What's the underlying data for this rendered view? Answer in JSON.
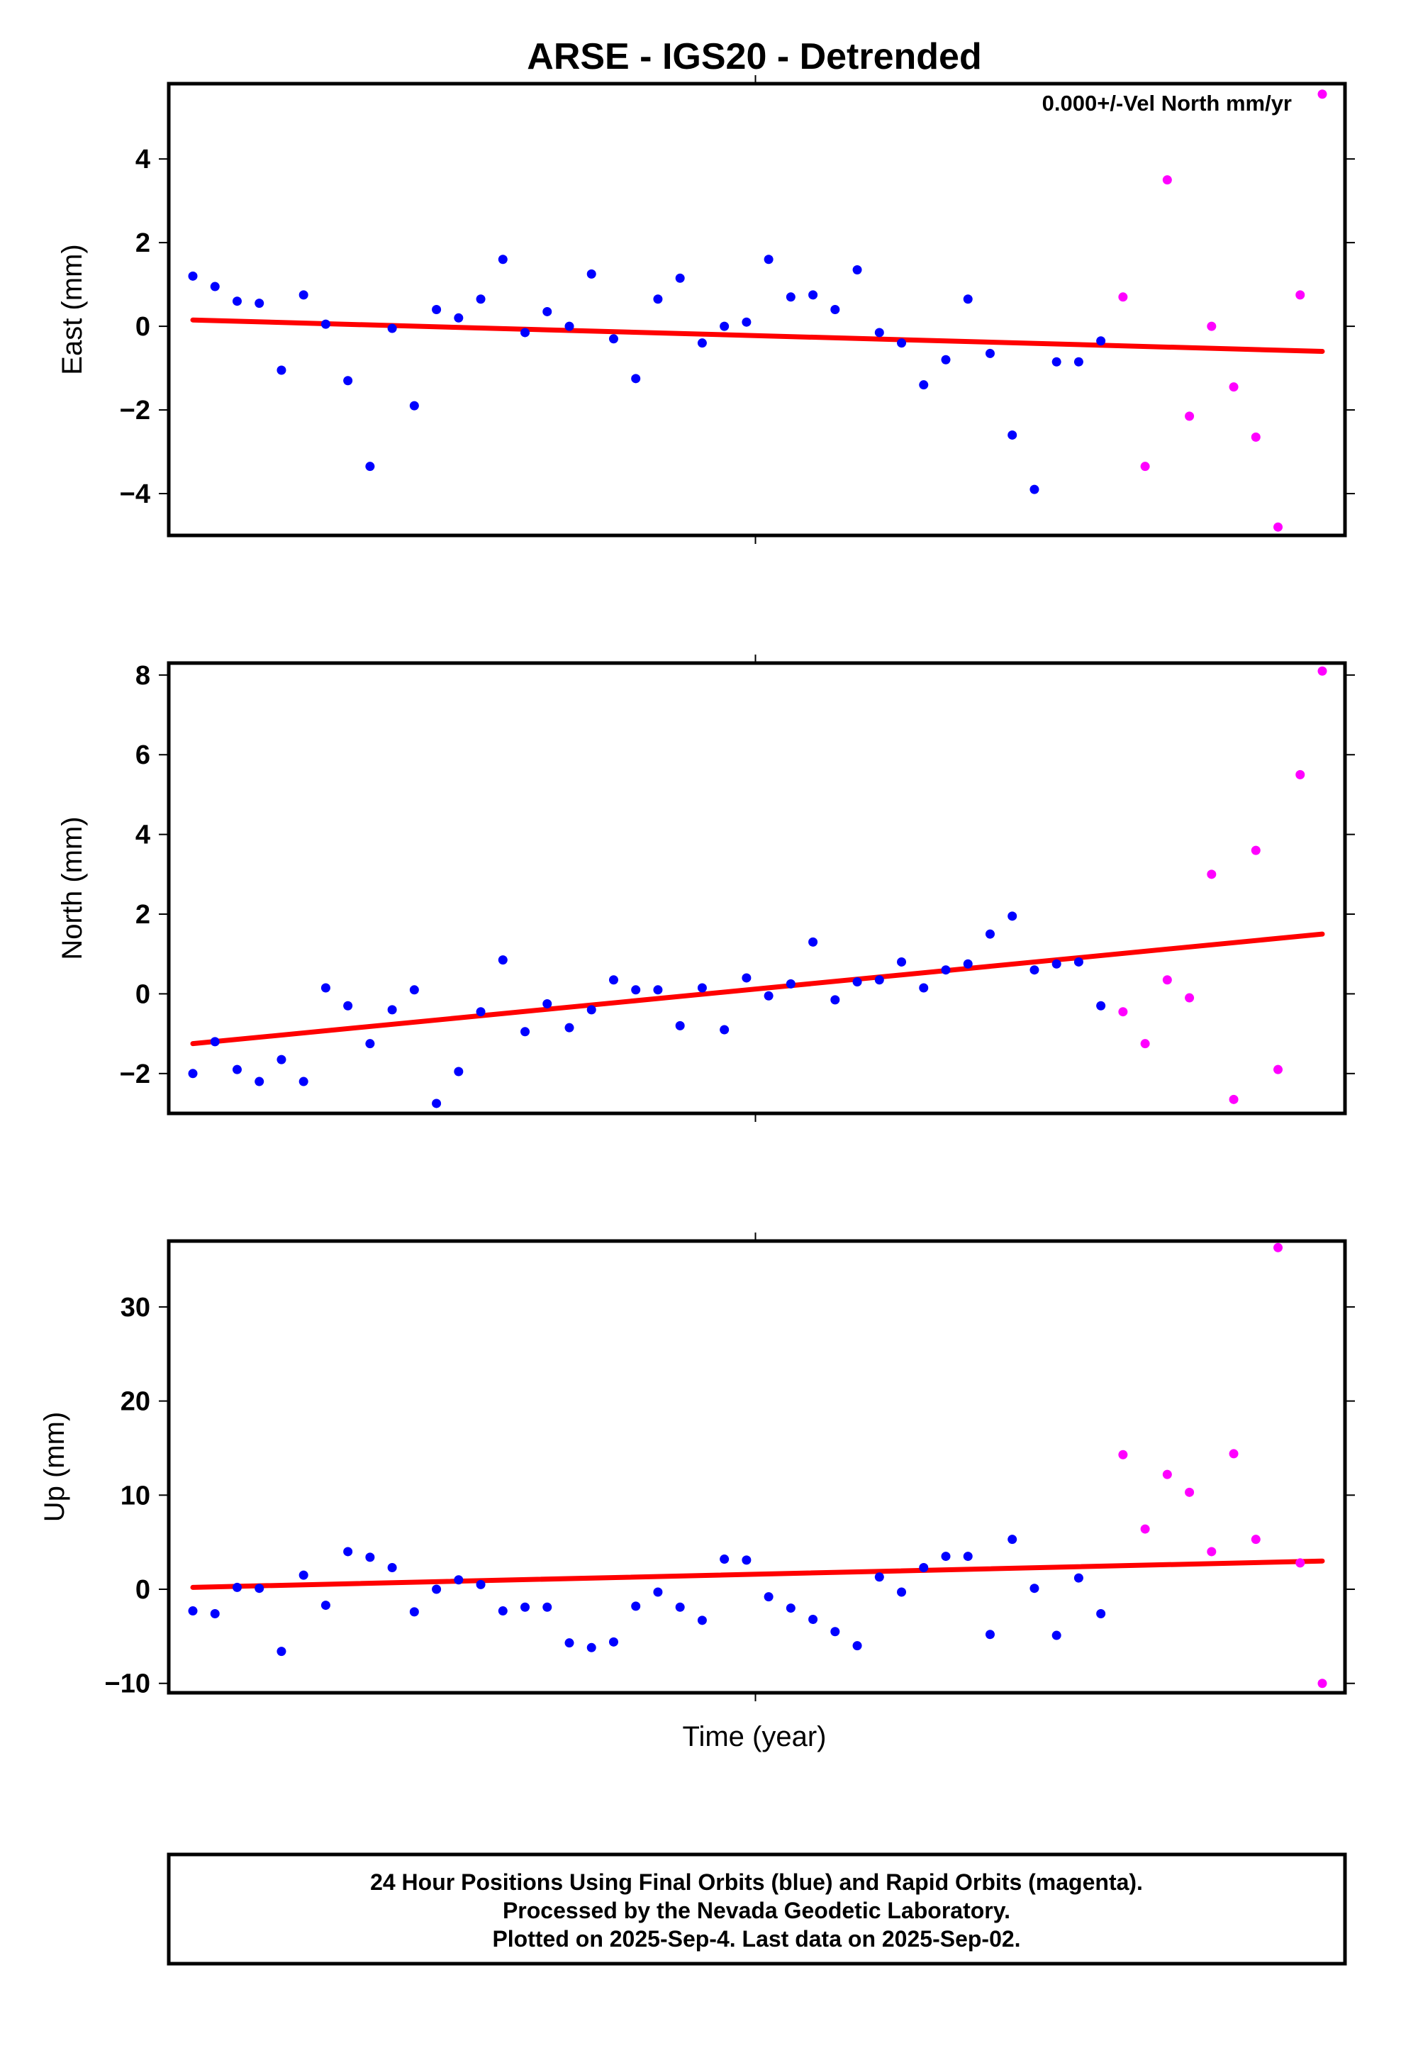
{
  "title": "ARSE - IGS20 - Detrended",
  "annotation": "0.000+/-Vel North mm/yr",
  "xlabel": "Time (year)",
  "footer": [
    "24 Hour Positions Using Final Orbits (blue) and Rapid Orbits (magenta).",
    "Processed by the Nevada Geodetic Laboratory.",
    "Plotted on 2025-Sep-4. Last data on 2025-Sep-02."
  ],
  "colors": {
    "final": "#0000ff",
    "rapid": "#ff00ff",
    "trend": "#ff0000"
  },
  "chart_data": [
    {
      "type": "scatter",
      "ylabel": "East (mm)",
      "ylim": [
        -5.0,
        5.8
      ],
      "yticks": [
        -4,
        -2,
        0,
        2,
        4
      ],
      "trend": [
        0.15,
        -0.6
      ],
      "final": [
        1.2,
        0.95,
        0.6,
        0.55,
        -1.05,
        0.75,
        0.05,
        -1.3,
        -3.35,
        -0.05,
        -1.9,
        0.4,
        0.2,
        0.65,
        1.6,
        -0.15,
        0.35,
        0.0,
        1.25,
        -0.3,
        -1.25,
        0.65,
        1.15,
        -0.4,
        0.0,
        0.1,
        1.6,
        0.7,
        0.75,
        0.4,
        1.35,
        -0.15,
        -0.4,
        -1.4,
        -0.8,
        0.65,
        -0.65,
        -2.6,
        -3.9,
        -0.85,
        -0.85,
        -0.35
      ],
      "rapid": [
        0.7,
        -3.35,
        3.5,
        -2.15,
        0.0,
        -1.45,
        -2.65,
        -4.8,
        0.75,
        5.55
      ]
    },
    {
      "type": "scatter",
      "ylabel": "North (mm)",
      "ylim": [
        -3.0,
        8.3
      ],
      "yticks": [
        -2,
        0,
        2,
        4,
        6,
        8
      ],
      "trend": [
        -1.25,
        1.5
      ],
      "final": [
        -2.0,
        -1.2,
        -1.9,
        -2.2,
        -1.65,
        -2.2,
        0.15,
        -0.3,
        -1.25,
        -0.4,
        0.1,
        -2.75,
        -1.95,
        -0.45,
        0.85,
        -0.95,
        -0.25,
        -0.85,
        -0.4,
        0.35,
        0.1,
        0.1,
        -0.8,
        0.15,
        -0.9,
        0.4,
        -0.05,
        0.25,
        1.3,
        -0.15,
        0.3,
        0.35,
        0.8,
        0.15,
        0.6,
        0.75,
        1.5,
        1.95,
        0.6,
        0.75,
        0.8,
        -0.3
      ],
      "rapid": [
        -0.45,
        -1.25,
        0.35,
        -0.1,
        3.0,
        -2.65,
        3.6,
        -1.9,
        5.5,
        8.1
      ]
    },
    {
      "type": "scatter",
      "ylabel": "Up (mm)",
      "ylim": [
        -11.0,
        37.0
      ],
      "yticks": [
        -10,
        0,
        10,
        20,
        30
      ],
      "trend": [
        0.2,
        3.0
      ],
      "final": [
        -2.3,
        -2.6,
        0.2,
        0.1,
        -6.6,
        1.5,
        -1.7,
        4.0,
        3.4,
        2.3,
        -2.4,
        0.0,
        1.0,
        0.5,
        -2.3,
        -1.9,
        -1.9,
        -5.7,
        -6.2,
        -5.6,
        -1.8,
        -0.3,
        -1.9,
        -3.3,
        3.2,
        3.1,
        -0.8,
        -2.0,
        -3.2,
        -4.5,
        -6.0,
        1.3,
        -0.3,
        2.3,
        3.5,
        3.5,
        -4.8,
        5.3,
        0.1,
        -4.9,
        1.2,
        -2.6
      ],
      "rapid": [
        14.3,
        6.4,
        12.2,
        10.3,
        4.0,
        14.4,
        5.3,
        36.3,
        2.8,
        -10.0
      ]
    }
  ]
}
